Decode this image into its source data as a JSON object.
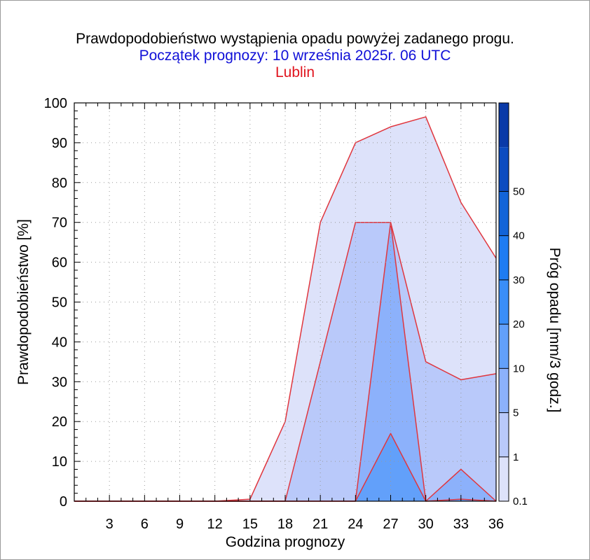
{
  "chart_data": {
    "type": "area",
    "title": "Prawdopodobieństwo wystąpienia opadu powyżej zadanego progu.",
    "subtitle": "Początek prognozy: 10 września 2025r. 06 UTC",
    "location": "Lublin",
    "xlabel": "Godzina prognozy",
    "ylabel": "Prawdopodobieństwo [%]",
    "colorbar_label": "Próg opadu [mm/3 godz.]",
    "xlim": [
      0,
      36
    ],
    "ylim": [
      0,
      100
    ],
    "x_ticks": [
      3,
      6,
      9,
      12,
      15,
      18,
      21,
      24,
      27,
      30,
      33,
      36
    ],
    "y_ticks": [
      0,
      10,
      20,
      30,
      40,
      50,
      60,
      70,
      80,
      90,
      100
    ],
    "grid": true,
    "colorbar": {
      "labels": [
        "0.1",
        "1",
        "5",
        "10",
        "20",
        "30",
        "40",
        "50"
      ],
      "colors": [
        "#dde2fa",
        "#b9c9fa",
        "#8cb1fb",
        "#62a0fa",
        "#3a8ef8",
        "#1e7cf2",
        "#1264d8",
        "#0c4cc0",
        "#0a3aa8"
      ],
      "line_color": "#e0363e"
    },
    "series": [
      {
        "name": "0.1",
        "x": [
          0,
          3,
          6,
          9,
          12,
          15,
          18,
          21,
          24,
          27,
          30,
          33,
          36
        ],
        "values": [
          0,
          0,
          0,
          0,
          0,
          0.5,
          20,
          70,
          90,
          94,
          96.5,
          75,
          61
        ]
      },
      {
        "name": "1",
        "x": [
          0,
          3,
          6,
          9,
          12,
          15,
          18,
          21,
          24,
          27,
          30,
          33,
          36
        ],
        "values": [
          0,
          0,
          0,
          0,
          0,
          0,
          0,
          35,
          70,
          70,
          35,
          30.5,
          32
        ]
      },
      {
        "name": "5",
        "x": [
          0,
          3,
          6,
          9,
          12,
          15,
          18,
          21,
          24,
          27,
          30,
          33,
          36
        ],
        "values": [
          0,
          0,
          0,
          0,
          0,
          0,
          0,
          0,
          0,
          70,
          0,
          8,
          0
        ]
      },
      {
        "name": "10",
        "x": [
          0,
          3,
          6,
          9,
          12,
          15,
          18,
          21,
          24,
          27,
          30,
          33,
          36
        ],
        "values": [
          0,
          0,
          0,
          0,
          0,
          0,
          0,
          0,
          0,
          17,
          0,
          0.5,
          0
        ]
      }
    ]
  }
}
